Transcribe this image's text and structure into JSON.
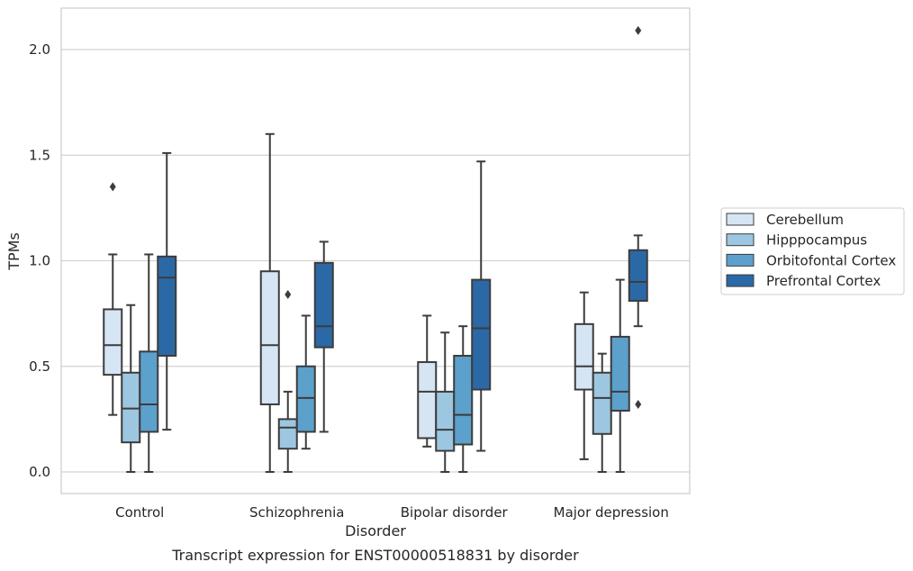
{
  "chart_data": {
    "type": "boxplot",
    "caption": "Transcript expression for ENST00000518831 by disorder",
    "xlabel": "Disorder",
    "ylabel": "TPMs",
    "ylim": [
      -0.1,
      2.2
    ],
    "yticks": [
      "0.0",
      "0.5",
      "1.0",
      "1.5",
      "2.0"
    ],
    "grid": "horizontal",
    "legend_position": "right",
    "categories": [
      "Control",
      "Schizophrenia",
      "Bipolar disorder",
      "Major depression"
    ],
    "series": [
      {
        "name": "Cerebellum",
        "color": "#d6e5f4",
        "boxes": [
          {
            "whislo": 0.27,
            "q1": 0.46,
            "med": 0.6,
            "q3": 0.77,
            "whishi": 1.03,
            "fliers": [
              1.35
            ]
          },
          {
            "whislo": 0.0,
            "q1": 0.32,
            "med": 0.6,
            "q3": 0.95,
            "whishi": 1.6,
            "fliers": []
          },
          {
            "whislo": 0.12,
            "q1": 0.16,
            "med": 0.38,
            "q3": 0.52,
            "whishi": 0.74,
            "fliers": []
          },
          {
            "whislo": 0.06,
            "q1": 0.39,
            "med": 0.5,
            "q3": 0.7,
            "whishi": 0.85,
            "fliers": []
          }
        ]
      },
      {
        "name": "Hipppocampus",
        "color": "#9dc6e0",
        "boxes": [
          {
            "whislo": 0.0,
            "q1": 0.14,
            "med": 0.3,
            "q3": 0.47,
            "whishi": 0.79,
            "fliers": []
          },
          {
            "whislo": 0.0,
            "q1": 0.11,
            "med": 0.21,
            "q3": 0.25,
            "whishi": 0.38,
            "fliers": [
              0.84
            ]
          },
          {
            "whislo": 0.0,
            "q1": 0.1,
            "med": 0.2,
            "q3": 0.38,
            "whishi": 0.66,
            "fliers": []
          },
          {
            "whislo": 0.0,
            "q1": 0.18,
            "med": 0.35,
            "q3": 0.47,
            "whishi": 0.56,
            "fliers": []
          }
        ]
      },
      {
        "name": "Orbitofontal Cortex",
        "color": "#5ca0cc",
        "boxes": [
          {
            "whislo": 0.0,
            "q1": 0.19,
            "med": 0.32,
            "q3": 0.57,
            "whishi": 1.03,
            "fliers": []
          },
          {
            "whislo": 0.11,
            "q1": 0.19,
            "med": 0.35,
            "q3": 0.5,
            "whishi": 0.74,
            "fliers": []
          },
          {
            "whislo": 0.0,
            "q1": 0.13,
            "med": 0.27,
            "q3": 0.55,
            "whishi": 0.69,
            "fliers": []
          },
          {
            "whislo": 0.0,
            "q1": 0.29,
            "med": 0.38,
            "q3": 0.64,
            "whishi": 0.91,
            "fliers": []
          }
        ]
      },
      {
        "name": "Prefrontal Cortex",
        "color": "#2a69a6",
        "boxes": [
          {
            "whislo": 0.2,
            "q1": 0.55,
            "med": 0.92,
            "q3": 1.02,
            "whishi": 1.51,
            "fliers": []
          },
          {
            "whislo": 0.19,
            "q1": 0.59,
            "med": 0.69,
            "q3": 0.99,
            "whishi": 1.09,
            "fliers": []
          },
          {
            "whislo": 0.1,
            "q1": 0.39,
            "med": 0.68,
            "q3": 0.91,
            "whishi": 1.47,
            "fliers": []
          },
          {
            "whislo": 0.69,
            "q1": 0.81,
            "med": 0.9,
            "q3": 1.05,
            "whishi": 1.12,
            "fliers": [
              0.32,
              2.09
            ]
          }
        ]
      }
    ]
  }
}
